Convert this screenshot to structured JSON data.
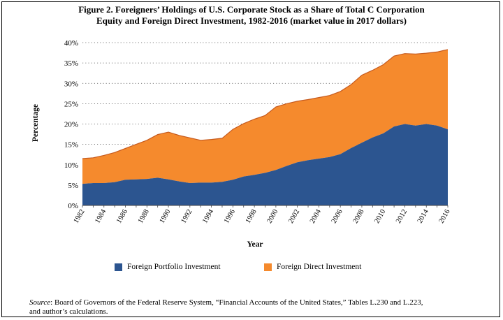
{
  "title_line1": "Figure 2. Foreigners’ Holdings of U.S. Corporate Stock as a Share of Total C Corporation",
  "title_line2": "Equity and Foreign Direct Investment, 1982-2016 (market value in 2017 dollars)",
  "source_label": "Source",
  "source_text": ": Board of Governors of the Federal Reserve System, “Financial Accounts of the United States,” Tables L.230 and L.223,",
  "source_text2": "and author’s calculations.",
  "colors": {
    "fpi": "#2c5590",
    "fdi": "#f58a2d",
    "grid": "#555555"
  },
  "chart_data": {
    "type": "area",
    "stacked": true,
    "title": "Figure 2. Foreigners’ Holdings of U.S. Corporate Stock as a Share of Total C Corporation Equity and Foreign Direct Investment, 1982-2016 (market value in 2017 dollars)",
    "xlabel": "Year",
    "ylabel": "Percentage",
    "ylim": [
      0,
      40
    ],
    "yticks": [
      "0%",
      "5%",
      "10%",
      "15%",
      "20%",
      "25%",
      "30%",
      "35%",
      "40%"
    ],
    "xticks": [
      "1982",
      "1984",
      "1986",
      "1988",
      "1990",
      "1992",
      "1994",
      "1996",
      "1998",
      "2000",
      "2002",
      "2004",
      "2006",
      "2008",
      "2010",
      "2012",
      "2014",
      "2016"
    ],
    "grid": "horizontal dotted",
    "legend": "bottom",
    "x": [
      1982,
      1983,
      1984,
      1985,
      1986,
      1987,
      1988,
      1989,
      1990,
      1991,
      1992,
      1993,
      1994,
      1995,
      1996,
      1997,
      1998,
      1999,
      2000,
      2001,
      2002,
      2003,
      2004,
      2005,
      2006,
      2007,
      2008,
      2009,
      2010,
      2011,
      2012,
      2013,
      2014,
      2015,
      2016
    ],
    "series": [
      {
        "name": "Foreign Portfolio Investment",
        "values": [
          5.3,
          5.5,
          5.5,
          5.7,
          6.3,
          6.4,
          6.5,
          6.8,
          6.4,
          5.9,
          5.5,
          5.6,
          5.6,
          5.8,
          6.3,
          7.1,
          7.5,
          8.0,
          8.7,
          9.7,
          10.6,
          11.1,
          11.5,
          11.9,
          12.6,
          14.1,
          15.4,
          16.7,
          17.7,
          19.4,
          20.0,
          19.6,
          20.0,
          19.6,
          18.7
        ]
      },
      {
        "name": "Foreign Direct Investment",
        "values": [
          6.2,
          6.2,
          6.8,
          7.3,
          7.7,
          8.6,
          9.5,
          10.6,
          11.6,
          11.3,
          11.1,
          10.4,
          10.6,
          10.7,
          12.4,
          13.0,
          13.7,
          14.1,
          15.5,
          15.3,
          15.0,
          14.9,
          15.0,
          15.1,
          15.4,
          15.6,
          16.6,
          16.5,
          16.9,
          17.3,
          17.3,
          17.6,
          17.4,
          18.1,
          19.6
        ]
      }
    ]
  }
}
